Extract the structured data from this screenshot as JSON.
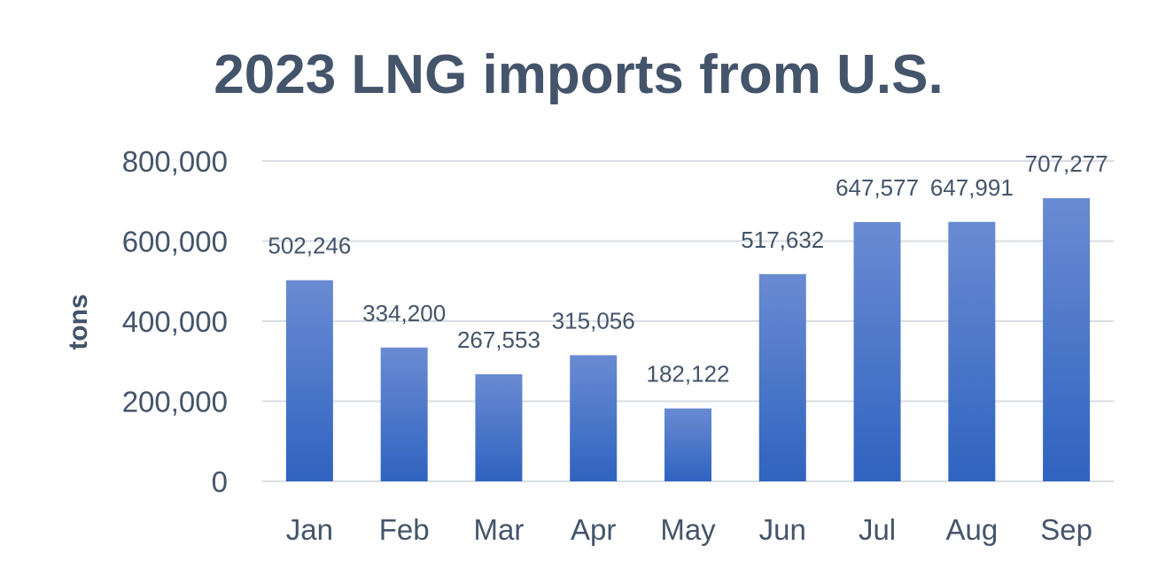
{
  "chart_data": {
    "type": "bar",
    "title": "2023 LNG imports from U.S.",
    "xlabel": "",
    "ylabel": "tons",
    "categories": [
      "Jan",
      "Feb",
      "Mar",
      "Apr",
      "May",
      "Jun",
      "Jul",
      "Aug",
      "Sep"
    ],
    "values": [
      502246,
      334200,
      267553,
      315056,
      182122,
      517632,
      647577,
      647991,
      707277
    ],
    "data_labels": [
      "502,246",
      "334,200",
      "267,553",
      "315,056",
      "182,122",
      "517,632",
      "647,577",
      "647,991",
      "707,277"
    ],
    "ylim": [
      0,
      800000
    ],
    "yticks": [
      0,
      200000,
      400000,
      600000,
      800000
    ],
    "ytick_labels": [
      "0",
      "200,000",
      "400,000",
      "600,000",
      "800,000"
    ],
    "grid": true,
    "legend": "none",
    "colors": {
      "bar_top": "#6a8bd2",
      "bar_bottom": "#2f63c0",
      "text": "#44546a",
      "grid": "#d9dde3"
    }
  }
}
